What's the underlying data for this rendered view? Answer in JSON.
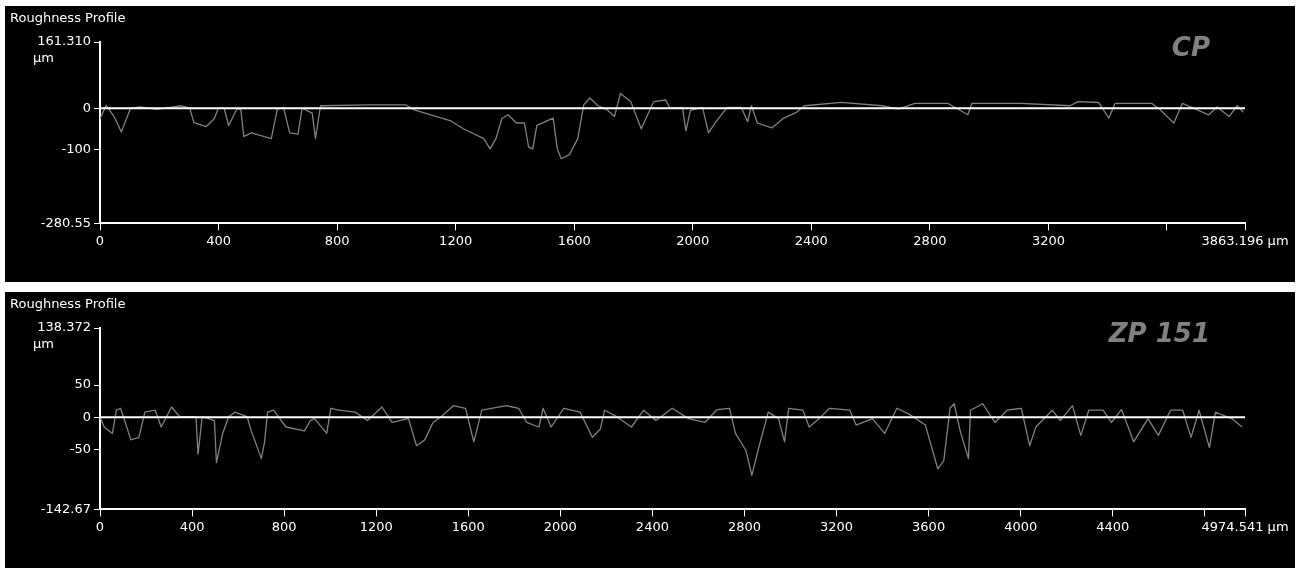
{
  "chart_data": [
    {
      "type": "line",
      "title": "Roughness Profile",
      "ylabel": "µm",
      "annotations": [
        "CP"
      ],
      "grid": false,
      "legend": false,
      "marker": "none",
      "line_style": "solid",
      "xlim": [
        0,
        3863.196
      ],
      "xticks": [
        0,
        400,
        800,
        1200,
        1600,
        2000,
        2400,
        2800,
        3200,
        {
          "value": 3600,
          "label": null
        },
        {
          "value": 3863.196,
          "label": "3863.196 µm"
        }
      ],
      "ylim": [
        -280.55,
        161.31
      ],
      "yticks": [
        {
          "value": 161.31,
          "label": "161.310"
        },
        0,
        -100,
        -280.55
      ],
      "ref_lines": [
        {
          "axis": "y",
          "value": 0,
          "color": "#ffffff"
        }
      ],
      "series": [
        {
          "color": "#808080",
          "x": [
            0,
            21,
            48,
            72,
            103,
            137,
            192,
            275,
            303,
            317,
            358,
            386,
            399,
            419,
            434,
            462,
            475,
            485,
            510,
            578,
            598,
            619,
            640,
            668,
            682,
            716,
            727,
            744,
            909,
            1033,
            1060,
            1116,
            1184,
            1226,
            1295,
            1316,
            1336,
            1356,
            1377,
            1405,
            1432,
            1446,
            1460,
            1474,
            1529,
            1543,
            1556,
            1584,
            1612,
            1632,
            1653,
            1680,
            1708,
            1736,
            1756,
            1791,
            1826,
            1868,
            1909,
            1923,
            1965,
            1977,
            1992,
            2033,
            2053,
            2081,
            2116,
            2164,
            2185,
            2198,
            2218,
            2267,
            2307,
            2350,
            2377,
            2501,
            2639,
            2694,
            2749,
            2860,
            2928,
            2942,
            3107,
            3273,
            3300,
            3369,
            3404,
            3425,
            3548,
            3576,
            3623,
            3652,
            3741,
            3769,
            3810,
            3837,
            3858
          ],
          "values": [
            -26,
            7,
            -21,
            -58,
            0,
            3,
            -3,
            6,
            0,
            -35,
            -45,
            -25,
            0,
            0,
            -42,
            -2,
            -2,
            -69,
            -60,
            -74,
            -3,
            2,
            -60,
            -63,
            0,
            -12,
            -74,
            6,
            8,
            8,
            -4,
            -16,
            -31,
            -50,
            -74,
            -99,
            -74,
            -25,
            -16,
            -36,
            -36,
            -94,
            -99,
            -42,
            -24,
            -99,
            -123,
            -113,
            -74,
            8,
            25,
            6,
            -2,
            -20,
            36,
            16,
            -50,
            16,
            20,
            0,
            2,
            -55,
            -5,
            2,
            -60,
            -30,
            2,
            2,
            -33,
            6,
            -36,
            -48,
            -24,
            -10,
            6,
            14,
            6,
            -2,
            12,
            12,
            -16,
            12,
            12,
            6,
            16,
            14,
            -24,
            12,
            12,
            -3,
            -36,
            12,
            -16,
            3,
            -20,
            6,
            -10
          ]
        }
      ]
    },
    {
      "type": "line",
      "title": "Roughness Profile",
      "ylabel": "µm",
      "annotations": [
        "ZP 151"
      ],
      "grid": false,
      "legend": false,
      "marker": "none",
      "line_style": "solid",
      "xlim": [
        0,
        4974.541
      ],
      "xticks": [
        0,
        400,
        800,
        1200,
        1600,
        2000,
        2400,
        2800,
        3200,
        3600,
        4000,
        4400,
        {
          "value": 4800,
          "label": null
        },
        {
          "value": 4974.541,
          "label": "4974.541 µm"
        }
      ],
      "ylim": [
        -142.67,
        138.372
      ],
      "yticks": [
        {
          "value": 138.372,
          "label": "138.372"
        },
        50,
        0,
        -50,
        -142.67
      ],
      "ref_lines": [
        {
          "axis": "y",
          "value": 0,
          "color": "#ffffff"
        }
      ],
      "series": [
        {
          "color": "#808080",
          "x": [
            0,
            18,
            54,
            71,
            89,
            107,
            134,
            169,
            195,
            240,
            266,
            311,
            346,
            417,
            426,
            444,
            497,
            506,
            533,
            559,
            586,
            639,
            657,
            701,
            715,
            728,
            754,
            808,
            888,
            914,
            932,
            985,
            1003,
            1038,
            1109,
            1162,
            1225,
            1269,
            1340,
            1375,
            1411,
            1447,
            1482,
            1535,
            1588,
            1624,
            1659,
            1766,
            1819,
            1854,
            1907,
            1925,
            1960,
            2015,
            2086,
            2139,
            2174,
            2192,
            2245,
            2309,
            2362,
            2415,
            2486,
            2557,
            2628,
            2681,
            2735,
            2761,
            2806,
            2832,
            2859,
            2903,
            2948,
            2974,
            2992,
            3054,
            3081,
            3125,
            3169,
            3258,
            3285,
            3356,
            3409,
            3462,
            3515,
            3586,
            3640,
            3666,
            3693,
            3711,
            3737,
            3773,
            3782,
            3835,
            3888,
            3941,
            4003,
            4039,
            4066,
            4137,
            4172,
            4225,
            4261,
            4296,
            4358,
            4394,
            4438,
            4491,
            4553,
            4598,
            4651,
            4704,
            4740,
            4775,
            4820,
            4846,
            4917,
            4962
          ],
          "values": [
            1,
            -15,
            -25,
            11,
            14,
            -5,
            -35,
            -31,
            8,
            11,
            -15,
            16,
            1,
            1,
            -57,
            1,
            -5,
            -70,
            -25,
            1,
            8,
            1,
            -21,
            -64,
            -38,
            8,
            11,
            -15,
            -21,
            -5,
            -2,
            -25,
            14,
            11,
            8,
            -5,
            16,
            -8,
            -2,
            -44,
            -35,
            -8,
            1,
            18,
            14,
            -38,
            11,
            18,
            14,
            -8,
            -15,
            14,
            -15,
            14,
            8,
            -31,
            -18,
            11,
            1,
            -15,
            11,
            -5,
            14,
            -2,
            -8,
            12,
            14,
            -25,
            -51,
            -90,
            -51,
            8,
            -2,
            -38,
            14,
            11,
            -15,
            -2,
            14,
            11,
            -12,
            -2,
            -25,
            14,
            5,
            -12,
            -80,
            -67,
            14,
            21,
            -21,
            -64,
            11,
            21,
            -8,
            11,
            14,
            -44,
            -15,
            11,
            -5,
            18,
            -28,
            11,
            11,
            -8,
            12,
            -38,
            -2,
            -28,
            11,
            11,
            -31,
            11,
            -47,
            8,
            -2,
            -15
          ]
        }
      ]
    }
  ]
}
